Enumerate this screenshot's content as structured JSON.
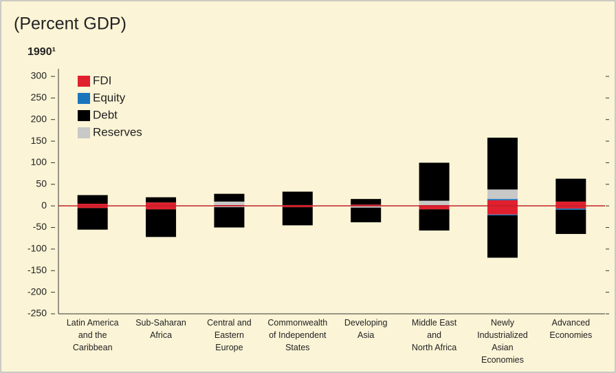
{
  "chart_data": {
    "type": "bar",
    "title": "(Percent GDP)",
    "subtitle": "1990¹",
    "categories": [
      "Latin America\nand the\nCaribbean",
      "Sub-Saharan\nAfrica",
      "Central and\nEastern\nEurope",
      "Commonwealth\nof Independent\nStates",
      "Developing\nAsia",
      "Middle East\nand\nNorth Africa",
      "Newly\nIndustrialized\nAsian\nEconomies",
      "Advanced\nEconomies"
    ],
    "series": [
      {
        "name": "FDI",
        "color": "#e0202e",
        "values": [
          5,
          8,
          2,
          2,
          3,
          2,
          13,
          10
        ],
        "values_below": [
          -5,
          -8,
          0,
          -3,
          0,
          -8,
          -20,
          -6
        ]
      },
      {
        "name": "Equity",
        "color": "#1b75bb",
        "values": [
          0,
          0,
          0,
          0,
          0,
          0,
          3,
          0
        ],
        "values_below": [
          0,
          0,
          0,
          0,
          0,
          0,
          -2,
          -3
        ]
      },
      {
        "name": "Debt",
        "color": "#000000",
        "values": [
          20,
          12,
          18,
          31,
          13,
          88,
          120,
          53
        ],
        "values_below": [
          -50,
          -64,
          -47,
          -42,
          -34,
          -49,
          -98,
          -56
        ]
      },
      {
        "name": "Reserves",
        "color": "#c8c8c8",
        "values": [
          0,
          0,
          8,
          0,
          0,
          10,
          22,
          0
        ],
        "values_below": [
          0,
          0,
          -3,
          0,
          -4,
          0,
          0,
          0
        ]
      }
    ],
    "ylim": [
      -250,
      300
    ],
    "yticks": [
      300,
      250,
      200,
      150,
      100,
      50,
      0,
      -50,
      -100,
      -150,
      -200,
      -250
    ]
  }
}
